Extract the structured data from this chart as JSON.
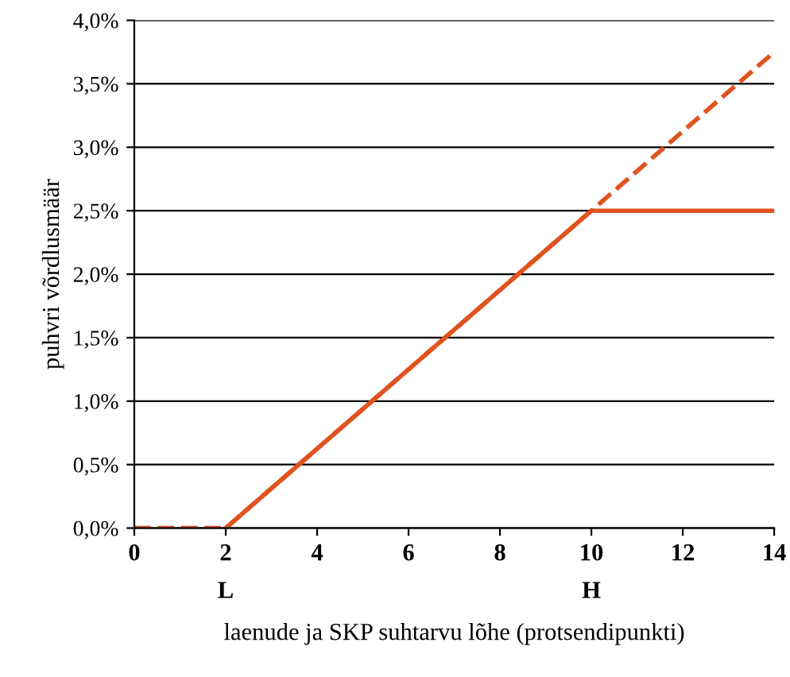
{
  "chart_data": {
    "type": "line",
    "xlabel": "laenude ja SKP suhtarvu lõhe (protsendipunkti)",
    "ylabel": "puhvri võrdlusmäär",
    "series": [
      {
        "x": [
          0,
          2,
          10,
          14
        ],
        "values": [
          0,
          0,
          2.5,
          3.75
        ],
        "color": "#e0531f",
        "line_style": "dashed"
      },
      {
        "x": [
          2,
          10,
          14
        ],
        "values": [
          0,
          2.5,
          2.5
        ],
        "color": "#e0531f",
        "line_style": "solid"
      }
    ],
    "xlim": [
      0,
      14
    ],
    "xticks": [
      0,
      2,
      4,
      6,
      8,
      10,
      12,
      14
    ],
    "ylim": [
      0,
      4
    ],
    "yticks": [
      {
        "value": 0,
        "label": "0,0%"
      },
      {
        "value": 0.5,
        "label": "0,5%"
      },
      {
        "value": 1,
        "label": "1,0%"
      },
      {
        "value": 1.5,
        "label": "1,5%"
      },
      {
        "value": 2,
        "label": "2,0%"
      },
      {
        "value": 2.5,
        "label": "2,5%"
      },
      {
        "value": 3,
        "label": "3,0%"
      },
      {
        "value": 3.5,
        "label": "3,5%"
      },
      {
        "value": 4,
        "label": "4,0%"
      }
    ],
    "grid": "y",
    "legend": false,
    "marker": "none",
    "annotations": [
      "L",
      "H"
    ]
  }
}
